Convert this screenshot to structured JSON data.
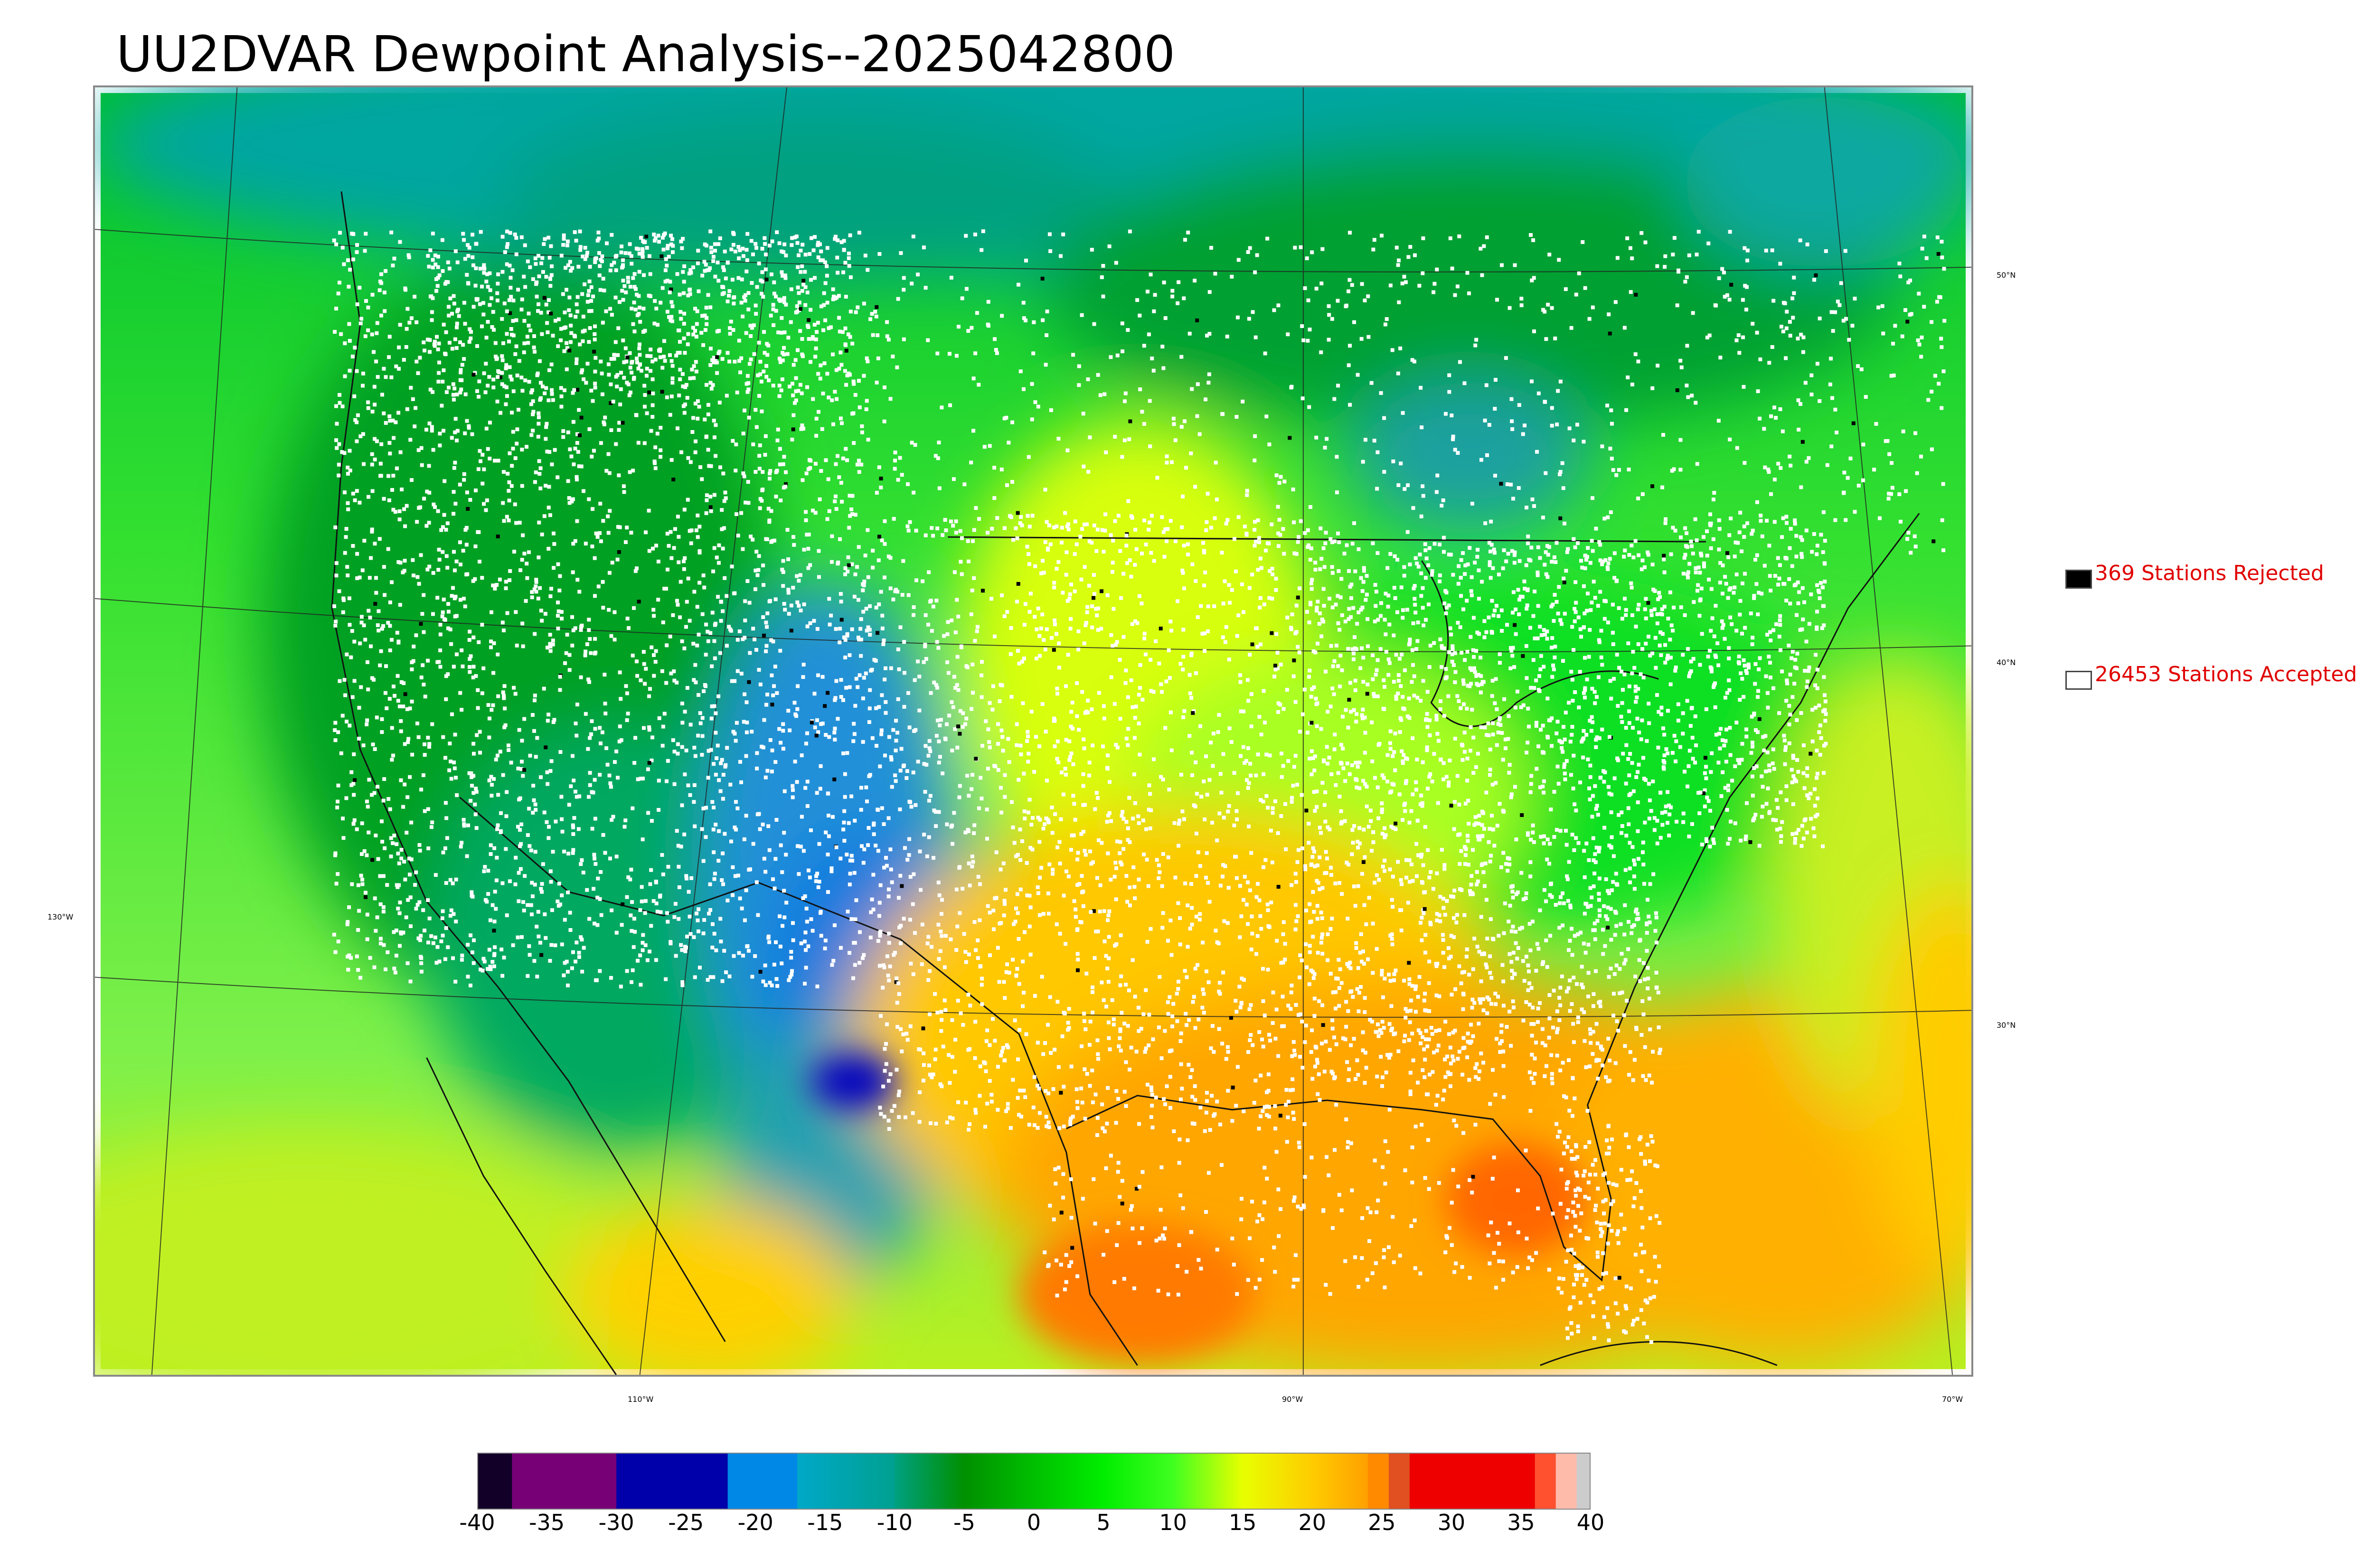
{
  "title": "UU2DVAR Dewpoint Analysis--2025042800",
  "legend": {
    "rejected_label": "369 Stations Rejected",
    "accepted_label": "26453 Stations Accepted",
    "rejected_color": "#000000",
    "accepted_color": "#ffffff"
  },
  "latitude_labels": [
    "50°N",
    "40°N",
    "30°N"
  ],
  "longitude_labels": [
    "130°W",
    "110°W",
    "90°W",
    "70°W"
  ],
  "colorbar": {
    "ticks": [
      "-40",
      "-35",
      "-30",
      "-25",
      "-20",
      "-15",
      "-10",
      "-5",
      "0",
      "5",
      "10",
      "15",
      "20",
      "25",
      "30",
      "35",
      "40"
    ],
    "min": -40,
    "max": 40,
    "segments": [
      {
        "from": -40,
        "to": -37.5,
        "color": "#120028"
      },
      {
        "from": -37.5,
        "to": -30,
        "color": "#770077"
      },
      {
        "from": -30,
        "to": -22,
        "color": "#0000aa"
      },
      {
        "from": -22,
        "to": -17,
        "color": "#0088e6"
      },
      {
        "from": -17,
        "to": -10,
        "color": "#00a8c8",
        "gradient_to": "#00a090"
      },
      {
        "from": -10,
        "to": -5,
        "color": "#00a080",
        "gradient_to": "#009000"
      },
      {
        "from": -5,
        "to": 5,
        "color": "#009000",
        "gradient_to": "#00ee00"
      },
      {
        "from": 5,
        "to": 10,
        "color": "#00ee00",
        "gradient_to": "#40ff20"
      },
      {
        "from": 10,
        "to": 15,
        "color": "#40ff20",
        "gradient_to": "#e8ff00"
      },
      {
        "from": 15,
        "to": 20,
        "color": "#e8ff00",
        "gradient_to": "#ffcc00"
      },
      {
        "from": 20,
        "to": 24,
        "color": "#ffcc00",
        "gradient_to": "#ffa000"
      },
      {
        "from": 24,
        "to": 25.5,
        "color": "#ff8a00"
      },
      {
        "from": 25.5,
        "to": 27,
        "color": "#e05020"
      },
      {
        "from": 27,
        "to": 36,
        "color": "#ee0000"
      },
      {
        "from": 36,
        "to": 37.5,
        "color": "#ff5030"
      },
      {
        "from": 37.5,
        "to": 39,
        "color": "#ffbbaa"
      },
      {
        "from": 39,
        "to": 40,
        "color": "#cccccc"
      }
    ]
  },
  "colors": {
    "ocean_west": "#66ee33",
    "gulf": "#ffb000",
    "canada_dark_green": "#00a020",
    "rockies_blue": "#1e8fd0",
    "plains_yellow": "#ddff00",
    "southeast_orange": "#ffc000",
    "station_accepted": "#ffffff",
    "station_rejected": "#000000"
  }
}
